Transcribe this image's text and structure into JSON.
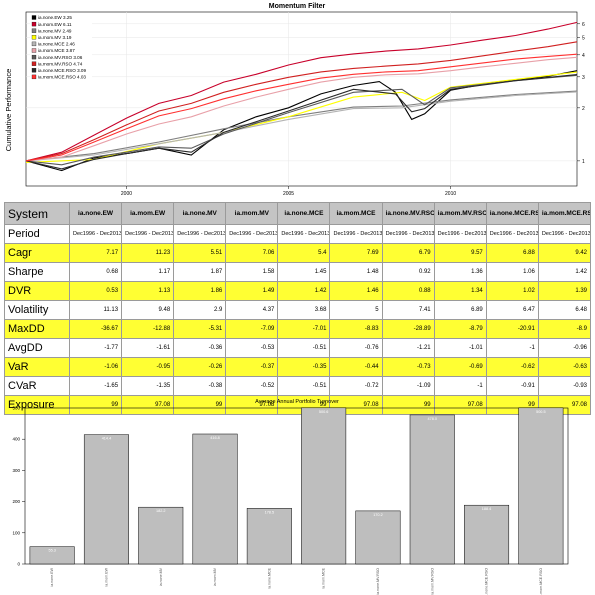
{
  "chart_data": [
    {
      "type": "line",
      "title": "Momentum Filter",
      "ylabel": "Cumulative Performance",
      "y_scale": "log",
      "ylim": [
        0.72,
        7.0
      ],
      "xlim": [
        1996.9,
        2013.9
      ],
      "x_ticks": [
        "2000",
        "2005",
        "2010"
      ],
      "y_ticks": [
        "1",
        "2",
        "3",
        "4",
        "5",
        "6"
      ],
      "legend_position": "top-left",
      "series": [
        {
          "name": "ia.none.EW 3.25",
          "color": "#000000",
          "x": [
            1996.9,
            1998.0,
            1999.0,
            2000.0,
            2001.0,
            2002.0,
            2003.0,
            2004.0,
            2005.0,
            2006.0,
            2007.0,
            2007.8,
            2008.3,
            2008.8,
            2009.2,
            2010.0,
            2011.0,
            2012.0,
            2013.0,
            2013.9
          ],
          "y": [
            1.0,
            0.88,
            1.04,
            1.1,
            1.18,
            1.08,
            1.5,
            1.78,
            2.0,
            2.4,
            2.68,
            2.82,
            2.45,
            1.72,
            1.85,
            2.52,
            2.72,
            2.88,
            3.02,
            3.25
          ]
        },
        {
          "name": "ia.mom.EW 6.11",
          "color": "#c8002a",
          "x": [
            1996.9,
            1998.0,
            1999.0,
            2000.0,
            2001.0,
            2002.0,
            2003.0,
            2004.0,
            2005.0,
            2006.0,
            2007.0,
            2008.0,
            2009.0,
            2010.0,
            2011.0,
            2012.0,
            2013.0,
            2013.9
          ],
          "y": [
            1.0,
            1.12,
            1.4,
            1.75,
            2.12,
            2.35,
            2.8,
            3.1,
            3.5,
            3.85,
            4.05,
            4.2,
            4.32,
            4.55,
            4.85,
            5.15,
            5.6,
            6.11
          ]
        },
        {
          "name": "ia.none.MV 2.49",
          "color": "#7f7f7f",
          "x": [
            1996.9,
            1999.0,
            2001.0,
            2003.0,
            2005.0,
            2007.0,
            2008.5,
            2010.0,
            2012.0,
            2013.9
          ],
          "y": [
            1.0,
            1.1,
            1.28,
            1.52,
            1.78,
            2.02,
            2.05,
            2.22,
            2.38,
            2.49
          ]
        },
        {
          "name": "ia.mom.MV 3.19",
          "color": "#ffff00",
          "x": [
            1996.9,
            1999.0,
            2001.0,
            2003.0,
            2005.0,
            2007.0,
            2008.5,
            2009.2,
            2010.0,
            2012.0,
            2013.9
          ],
          "y": [
            0.98,
            1.02,
            1.25,
            1.45,
            1.78,
            2.3,
            2.45,
            2.2,
            2.62,
            2.9,
            3.19
          ]
        },
        {
          "name": "ia.none.MCE 2.46",
          "color": "#b4b4b4",
          "x": [
            1996.9,
            1999.0,
            2001.0,
            2003.0,
            2005.0,
            2007.0,
            2008.5,
            2010.0,
            2012.0,
            2013.9
          ],
          "y": [
            1.0,
            1.08,
            1.25,
            1.45,
            1.72,
            1.98,
            2.0,
            2.18,
            2.35,
            2.46
          ]
        },
        {
          "name": "ia.mom.MCE 3.87",
          "color": "#e8a0a8",
          "x": [
            1996.9,
            1998.0,
            1999.0,
            2000.0,
            2001.0,
            2002.0,
            2003.0,
            2004.0,
            2005.0,
            2006.0,
            2007.0,
            2008.0,
            2009.0,
            2010.0,
            2011.0,
            2012.0,
            2013.0,
            2013.9
          ],
          "y": [
            1.0,
            1.05,
            1.22,
            1.42,
            1.62,
            1.78,
            2.05,
            2.3,
            2.55,
            2.8,
            2.98,
            3.08,
            3.12,
            3.25,
            3.42,
            3.58,
            3.75,
            3.87
          ]
        },
        {
          "name": "ia.none.MV.RSO 3.06",
          "color": "#5a5a5a",
          "x": [
            1996.9,
            1998.0,
            1999.0,
            2000.0,
            2001.0,
            2002.0,
            2003.0,
            2005.0,
            2007.0,
            2008.5,
            2009.2,
            2010.0,
            2012.0,
            2013.9
          ],
          "y": [
            1.0,
            0.95,
            1.05,
            1.12,
            1.2,
            1.18,
            1.42,
            1.88,
            2.45,
            2.55,
            2.08,
            2.6,
            2.85,
            3.06
          ]
        },
        {
          "name": "ia.mom.MV.RSO 4.74",
          "color": "#d02020",
          "x": [
            1996.9,
            1998.0,
            1999.0,
            2000.0,
            2001.0,
            2002.0,
            2003.0,
            2004.0,
            2005.0,
            2006.0,
            2007.0,
            2008.0,
            2009.0,
            2010.0,
            2011.0,
            2012.0,
            2013.0,
            2013.9
          ],
          "y": [
            1.0,
            1.1,
            1.32,
            1.6,
            1.92,
            2.12,
            2.45,
            2.72,
            2.98,
            3.2,
            3.35,
            3.45,
            3.55,
            3.72,
            3.95,
            4.2,
            4.45,
            4.74
          ]
        },
        {
          "name": "ia.none.MCE.RSO 3.09",
          "color": "#2a2a2a",
          "x": [
            1996.9,
            1998.0,
            1999.0,
            2000.0,
            2001.0,
            2002.0,
            2003.0,
            2005.0,
            2007.0,
            2008.3,
            2008.8,
            2009.2,
            2010.0,
            2012.0,
            2013.9
          ],
          "y": [
            1.0,
            0.9,
            1.02,
            1.1,
            1.18,
            1.12,
            1.45,
            1.92,
            2.55,
            2.4,
            1.9,
            1.98,
            2.55,
            2.85,
            3.09
          ]
        },
        {
          "name": "ia.mom.MCE.RSO 4.03",
          "color": "#ff3030",
          "x": [
            1996.9,
            1998.0,
            1999.0,
            2000.0,
            2001.0,
            2002.0,
            2003.0,
            2004.0,
            2005.0,
            2006.0,
            2007.0,
            2008.0,
            2009.0,
            2010.0,
            2011.0,
            2012.0,
            2013.0,
            2013.9
          ],
          "y": [
            1.0,
            1.08,
            1.28,
            1.52,
            1.8,
            1.98,
            2.25,
            2.5,
            2.72,
            2.95,
            3.1,
            3.2,
            3.25,
            3.42,
            3.6,
            3.78,
            3.92,
            4.03
          ]
        }
      ]
    },
    {
      "type": "table",
      "columns": [
        "System",
        "ia.none.EW",
        "ia.mom.EW",
        "ia.none.MV",
        "ia.mom.MV",
        "ia.none.MCE",
        "ia.mom.MCE",
        "ia.none.MV.RSO",
        "ia.mom.MV.RSO",
        "ia.none.MCE.RSO",
        "ia.mom.MCE.RSO"
      ],
      "rows": [
        {
          "label": "Period",
          "highlight": false,
          "values": [
            "Dec1996 - Dec2013",
            "Dec1996 - Dec2013",
            "Dec1996 - Dec2013",
            "Dec1996 - Dec2013",
            "Dec1996 - Dec2013",
            "Dec1996 - Dec2013",
            "Dec1996 - Dec2013",
            "Dec1996 - Dec2013",
            "Dec1996 - Dec2013",
            "Dec1996 - Dec2013"
          ]
        },
        {
          "label": "Cagr",
          "highlight": true,
          "values": [
            "7.17",
            "11.23",
            "5.51",
            "7.06",
            "5.4",
            "7.69",
            "6.79",
            "9.57",
            "6.88",
            "9.42"
          ]
        },
        {
          "label": "Sharpe",
          "highlight": false,
          "values": [
            "0.68",
            "1.17",
            "1.87",
            "1.58",
            "1.45",
            "1.48",
            "0.92",
            "1.36",
            "1.06",
            "1.42"
          ]
        },
        {
          "label": "DVR",
          "highlight": true,
          "values": [
            "0.53",
            "1.13",
            "1.86",
            "1.49",
            "1.42",
            "1.46",
            "0.88",
            "1.34",
            "1.02",
            "1.39"
          ]
        },
        {
          "label": "Volatility",
          "highlight": false,
          "values": [
            "11.13",
            "9.48",
            "2.9",
            "4.37",
            "3.68",
            "5",
            "7.41",
            "6.89",
            "6.47",
            "6.48"
          ]
        },
        {
          "label": "MaxDD",
          "highlight": true,
          "values": [
            "-36.67",
            "-12.88",
            "-5.31",
            "-7.09",
            "-7.01",
            "-8.83",
            "-28.89",
            "-8.79",
            "-20.91",
            "-8.9"
          ]
        },
        {
          "label": "AvgDD",
          "highlight": false,
          "values": [
            "-1.77",
            "-1.61",
            "-0.36",
            "-0.53",
            "-0.51",
            "-0.76",
            "-1.21",
            "-1.01",
            "-1",
            "-0.96"
          ]
        },
        {
          "label": "VaR",
          "highlight": true,
          "values": [
            "-1.06",
            "-0.95",
            "-0.26",
            "-0.37",
            "-0.35",
            "-0.44",
            "-0.73",
            "-0.69",
            "-0.62",
            "-0.63"
          ]
        },
        {
          "label": "CVaR",
          "highlight": false,
          "values": [
            "-1.65",
            "-1.35",
            "-0.38",
            "-0.52",
            "-0.51",
            "-0.72",
            "-1.09",
            "-1",
            "-0.91",
            "-0.93"
          ]
        },
        {
          "label": "Exposure",
          "highlight": true,
          "values": [
            "99",
            "97.08",
            "99",
            "97.08",
            "99",
            "97.08",
            "99",
            "97.08",
            "99",
            "97.08"
          ]
        }
      ]
    },
    {
      "type": "bar",
      "title": "Average Annual Portfolio Turnover",
      "ylim": [
        0,
        500
      ],
      "y_ticks": [
        "0",
        "100",
        "200",
        "300",
        "400",
        "500"
      ],
      "categories": [
        "ia.none.EW",
        "ia.mom.EW",
        "ia.none.MV",
        "ia.mom.MV",
        "ia.none.MCE",
        "ia.mom.MCE",
        "ia.none.MV.RSO",
        "ia.mom.MV.RSO",
        "ia.none.MCE.RSO",
        "ia.mom.MCE.RSO"
      ],
      "values": [
        55.3,
        414.4,
        182.2,
        416.8,
        178.5,
        500.6,
        170.2,
        478.0,
        188.4,
        500.5
      ],
      "value_labels": [
        "55.3",
        "414.4",
        "182.2",
        "416.8",
        "178.5",
        "500.6",
        "170.2",
        "478.0",
        "188.4",
        "500.5"
      ],
      "bar_color": "#bebebe"
    }
  ]
}
